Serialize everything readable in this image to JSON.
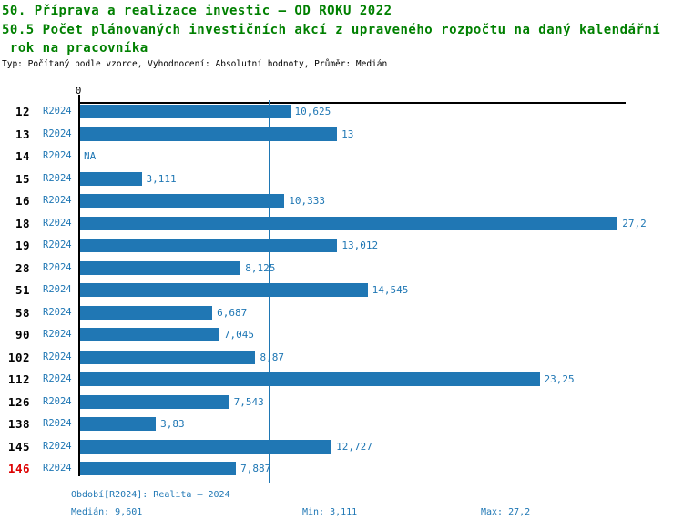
{
  "header": {
    "title_line1": "50. Příprava a realizace investic – OD ROKU 2022",
    "title_line2": "50.5 Počet plánovaných investičních akcí z upraveného rozpočtu na daný kalendářní",
    "title_line3": " rok na pracovníka",
    "subtitle": "Typ: Počítaný podle vzorce, Vyhodnocení: Absolutní hodnoty, Průměr: Medián"
  },
  "chart_data": {
    "type": "bar",
    "orientation": "horizontal",
    "title": "50.5 Počet plánovaných investičních akcí z upraveného rozpočtu na daný kalendářní rok na pracovníka",
    "xlabel": "",
    "ylabel": "",
    "axis": {
      "zero_label": "0",
      "xlim": [
        0,
        27.65
      ],
      "grid": false
    },
    "legend": "none",
    "period_label": "R2024",
    "categories": [
      "12",
      "13",
      "14",
      "15",
      "16",
      "18",
      "19",
      "28",
      "51",
      "58",
      "90",
      "102",
      "112",
      "126",
      "138",
      "145",
      "146"
    ],
    "rows": [
      {
        "id": "12",
        "value": 10.625,
        "label": "10,625"
      },
      {
        "id": "13",
        "value": 13,
        "label": "13"
      },
      {
        "id": "14",
        "value": null,
        "label": "NA"
      },
      {
        "id": "15",
        "value": 3.111,
        "label": "3,111"
      },
      {
        "id": "16",
        "value": 10.333,
        "label": "10,333"
      },
      {
        "id": "18",
        "value": 27.2,
        "label": "27,2"
      },
      {
        "id": "19",
        "value": 13.012,
        "label": "13,012"
      },
      {
        "id": "28",
        "value": 8.125,
        "label": "8,125"
      },
      {
        "id": "51",
        "value": 14.545,
        "label": "14,545"
      },
      {
        "id": "58",
        "value": 6.687,
        "label": "6,687"
      },
      {
        "id": "90",
        "value": 7.045,
        "label": "7,045"
      },
      {
        "id": "102",
        "value": 8.87,
        "label": "8,87"
      },
      {
        "id": "112",
        "value": 23.25,
        "label": "23,25"
      },
      {
        "id": "126",
        "value": 7.543,
        "label": "7,543"
      },
      {
        "id": "138",
        "value": 3.83,
        "label": "3,83"
      },
      {
        "id": "145",
        "value": 12.727,
        "label": "12,727"
      },
      {
        "id": "146",
        "value": 7.887,
        "label": "7,887",
        "highlight": true
      }
    ],
    "median_value": 9.601,
    "colors": {
      "bar": "#2077b4",
      "blue_text": "#1f77b4",
      "median_line": "#1f77b4",
      "title_green": "#008000",
      "highlight_red": "#dd0000",
      "axis_black": "#000000"
    }
  },
  "footer": {
    "period_info": "Období[R2024]: Realita – 2024",
    "median": "Medián: 9,601",
    "min": "Min: 3,111",
    "max": "Max: 27,2"
  }
}
